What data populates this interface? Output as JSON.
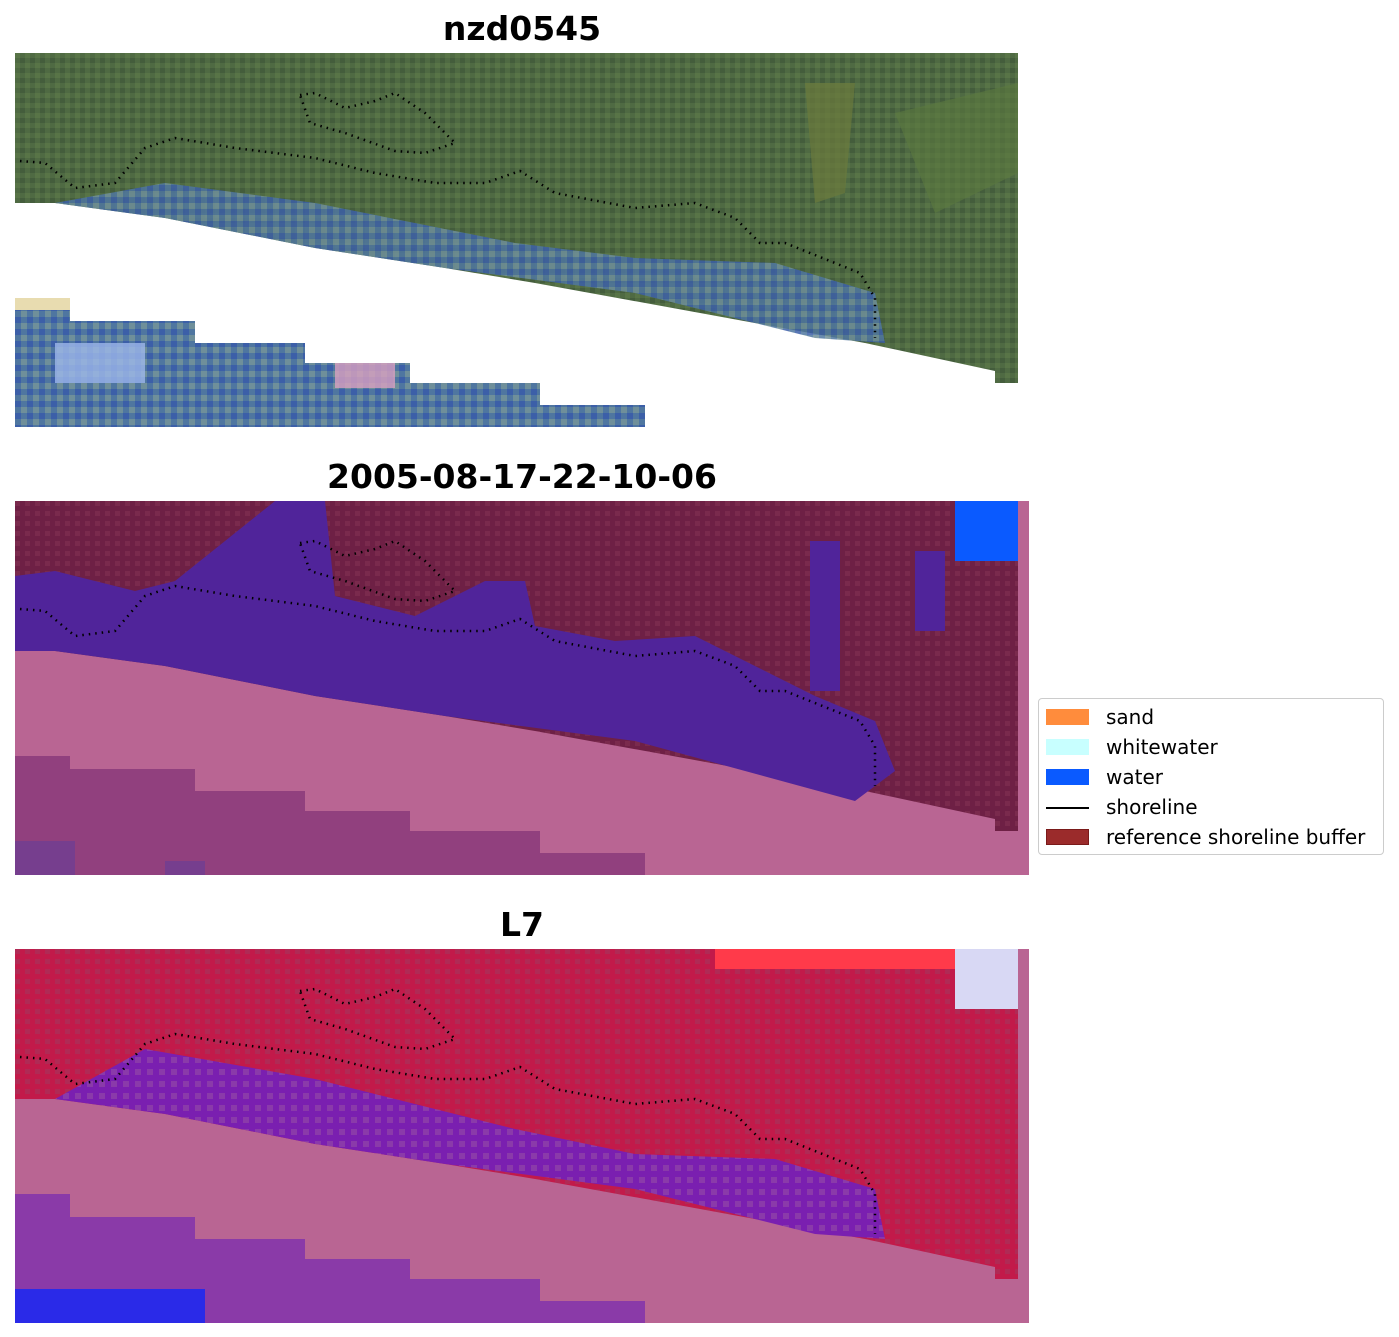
{
  "panels": [
    {
      "title": "nzd0545",
      "style": "rgb"
    },
    {
      "title": "2005-08-17-22-10-06",
      "style": "class"
    },
    {
      "title": "L7",
      "style": "index"
    }
  ],
  "legend": {
    "items": [
      {
        "label": "sand",
        "kind": "patch",
        "color": "#ff8c3c"
      },
      {
        "label": "whitewater",
        "kind": "patch",
        "color": "#c8ffff"
      },
      {
        "label": "water",
        "kind": "patch",
        "color": "#0a5aff"
      },
      {
        "label": "shoreline",
        "kind": "line",
        "color": "#000000"
      },
      {
        "label": "reference shoreline buffer",
        "kind": "patch",
        "color": "#9b2b2b"
      }
    ]
  },
  "colors": {
    "land_rgb": "#4a6440",
    "water_rgb": "#3c5fa8",
    "class_land": "#6e2045",
    "class_water": "#50249a",
    "class_nodata": "#b96593",
    "index_land": "#c21a4a",
    "index_water": "#7a1fb0",
    "index_nodata": "#b96593"
  }
}
